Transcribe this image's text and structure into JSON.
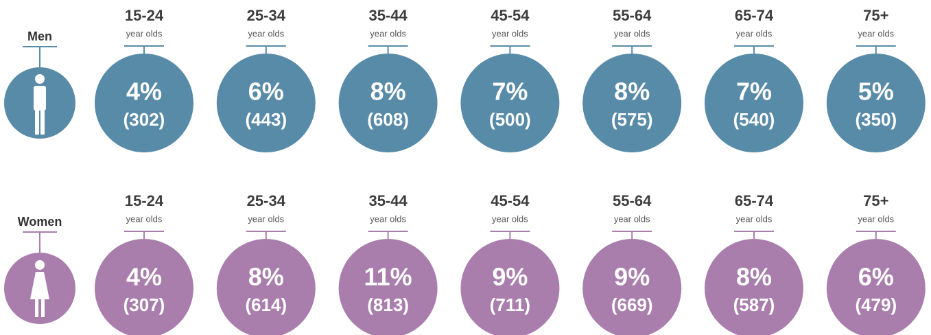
{
  "groups": [
    {
      "label": "Men",
      "color": "#588ba8",
      "items": [
        {
          "age": "15-24",
          "unit": "year olds",
          "percent": "4%",
          "count": "(302)"
        },
        {
          "age": "25-34",
          "unit": "year olds",
          "percent": "6%",
          "count": "(443)"
        },
        {
          "age": "35-44",
          "unit": "year olds",
          "percent": "8%",
          "count": "(608)"
        },
        {
          "age": "45-54",
          "unit": "year olds",
          "percent": "7%",
          "count": "(500)"
        },
        {
          "age": "55-64",
          "unit": "year olds",
          "percent": "8%",
          "count": "(575)"
        },
        {
          "age": "65-74",
          "unit": "year olds",
          "percent": "7%",
          "count": "(540)"
        },
        {
          "age": "75+",
          "unit": "year olds",
          "percent": "5%",
          "count": "(350)"
        }
      ]
    },
    {
      "label": "Women",
      "color": "#a97ead",
      "items": [
        {
          "age": "15-24",
          "unit": "year olds",
          "percent": "4%",
          "count": "(307)"
        },
        {
          "age": "25-34",
          "unit": "year olds",
          "percent": "8%",
          "count": "(614)"
        },
        {
          "age": "35-44",
          "unit": "year olds",
          "percent": "11%",
          "count": "(813)"
        },
        {
          "age": "45-54",
          "unit": "year olds",
          "percent": "9%",
          "count": "(711)"
        },
        {
          "age": "55-64",
          "unit": "year olds",
          "percent": "9%",
          "count": "(669)"
        },
        {
          "age": "65-74",
          "unit": "year olds",
          "percent": "8%",
          "count": "(587)"
        },
        {
          "age": "75+",
          "unit": "year olds",
          "percent": "6%",
          "count": "(479)"
        }
      ]
    }
  ]
}
